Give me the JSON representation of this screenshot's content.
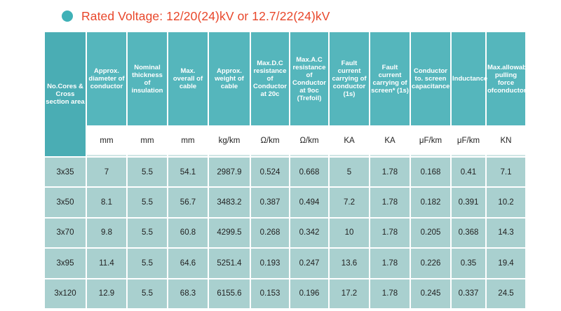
{
  "title": "Rated Voltage: 12/20(24)kV or 12.7/22(24)kV",
  "colors": {
    "bullet": "#3fb1b7",
    "title": "#e8462a",
    "header_bg": "#55b6bc",
    "cell_bg": "#a9d0cf"
  },
  "table": {
    "headers": [
      "No.Cores & Cross section area",
      "Approx. diameter of conductor",
      "Nominal thickness of insulation",
      "Max. overall of cable",
      "Approx. weight of cable",
      "Max.D.C resistance of Conductor at 20c",
      "Max.A.C resistance of Conductor at 9oc (Trefoil)",
      "Fault current carrying of conductor (1s)",
      "Fault current carrying of screen* (1s)",
      "Conductor to. screen capacitance",
      "Inductance",
      "Max.allowable pulling force ofconductor"
    ],
    "units": [
      "mm",
      "mm",
      "mm",
      "kg/km",
      "Ω/km",
      "Ω/km",
      "KA",
      "KA",
      "μF/km",
      "μF/km",
      "KN"
    ],
    "rows": [
      [
        "3x35",
        "7",
        "5.5",
        "54.1",
        "2987.9",
        "0.524",
        "0.668",
        "5",
        "1.78",
        "0.168",
        "0.41",
        "7.1"
      ],
      [
        "3x50",
        "8.1",
        "5.5",
        "56.7",
        "3483.2",
        "0.387",
        "0.494",
        "7.2",
        "1.78",
        "0.182",
        "0.391",
        "10.2"
      ],
      [
        "3x70",
        "9.8",
        "5.5",
        "60.8",
        "4299.5",
        "0.268",
        "0.342",
        "10",
        "1.78",
        "0.205",
        "0.368",
        "14.3"
      ],
      [
        "3x95",
        "11.4",
        "5.5",
        "64.6",
        "5251.4",
        "0.193",
        "0.247",
        "13.6",
        "1.78",
        "0.226",
        "0.35",
        "19.4"
      ],
      [
        "3x120",
        "12.9",
        "5.5",
        "68.3",
        "6155.6",
        "0.153",
        "0.196",
        "17.2",
        "1.78",
        "0.245",
        "0.337",
        "24.5"
      ]
    ]
  }
}
